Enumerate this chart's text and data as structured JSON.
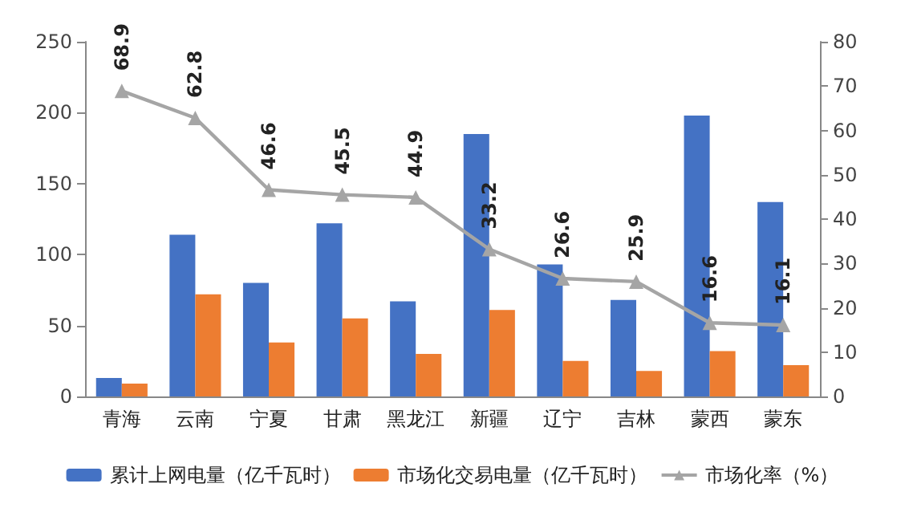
{
  "chart_data": {
    "type": "bar",
    "categories": [
      "青海",
      "云南",
      "宁夏",
      "甘肃",
      "黑龙江",
      "新疆",
      "辽宁",
      "吉林",
      "蒙西",
      "蒙东"
    ],
    "series": [
      {
        "name": "累计上网电量（亿千瓦时）",
        "color": "#4472c4",
        "values": [
          13,
          114,
          80,
          122,
          67,
          185,
          93,
          68,
          198,
          137
        ]
      },
      {
        "name": "市场化交易电量（亿千瓦时）",
        "color": "#ed7d31",
        "values": [
          9,
          72,
          38,
          55,
          30,
          61,
          25,
          18,
          32,
          22
        ]
      },
      {
        "name": "市场化率（%）",
        "type": "line",
        "axis": "y2",
        "color": "#a5a5a5",
        "marker": "triangle",
        "data_labels": true,
        "values": [
          68.9,
          62.8,
          46.6,
          45.5,
          44.9,
          33.2,
          26.6,
          25.9,
          16.6,
          16.1
        ]
      }
    ],
    "ylim": [
      0,
      250
    ],
    "yticks": [
      0,
      50,
      100,
      150,
      200,
      250
    ],
    "y2lim": [
      0,
      80
    ],
    "y2ticks": [
      0,
      10,
      20,
      30,
      40,
      50,
      60,
      70,
      80
    ],
    "grid": false,
    "legend": "bottom"
  }
}
